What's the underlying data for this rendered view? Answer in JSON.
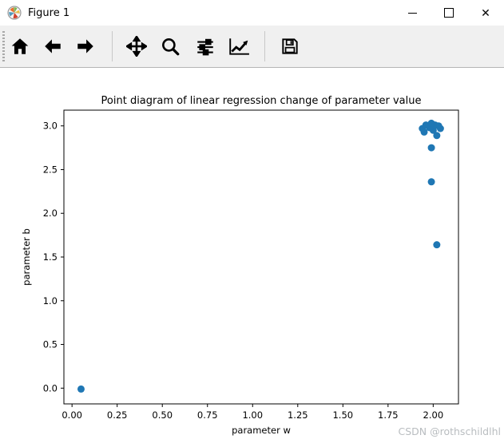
{
  "window": {
    "title": "Figure 1",
    "controls": {
      "minimize": "minimize",
      "maximize": "maximize",
      "close_glyph": "✕"
    }
  },
  "toolbar": {
    "buttons": [
      "home",
      "back",
      "forward",
      "pan",
      "zoom-to-rect",
      "configure-subplots",
      "edit-parameters",
      "save"
    ]
  },
  "watermark": "CSDN @rothschildlhl",
  "chart_data": {
    "type": "scatter",
    "title": "Point diagram of linear regression change of parameter value",
    "xlabel": "parameter w",
    "ylabel": "parameter b",
    "xlim": [
      -0.045,
      2.14
    ],
    "ylim": [
      -0.18,
      3.18
    ],
    "x_ticks": [
      0,
      0.25,
      0.5,
      0.75,
      1.0,
      1.25,
      1.5,
      1.75,
      2.0
    ],
    "x_tick_labels": [
      "0.00",
      "0.25",
      "0.50",
      "0.75",
      "1.00",
      "1.25",
      "1.50",
      "1.75",
      "2.00"
    ],
    "y_ticks": [
      0,
      0.5,
      1.0,
      1.5,
      2.0,
      2.5,
      3.0
    ],
    "y_tick_labels": [
      "0.0",
      "0.5",
      "1.0",
      "1.5",
      "2.0",
      "2.5",
      "3.0"
    ],
    "grid": false,
    "legend": null,
    "marker_color": "#1f77b4",
    "marker_radius_px": 4.5,
    "points": [
      [
        0.05,
        -0.01
      ],
      [
        2.02,
        1.64
      ],
      [
        1.99,
        2.36
      ],
      [
        1.99,
        2.75
      ],
      [
        2.02,
        2.89
      ],
      [
        1.95,
        2.93
      ],
      [
        2.0,
        2.95
      ],
      [
        1.94,
        2.97
      ],
      [
        1.98,
        2.98
      ],
      [
        2.03,
        3.0
      ],
      [
        1.96,
        3.01
      ],
      [
        2.01,
        3.01
      ],
      [
        1.99,
        3.03
      ],
      [
        2.04,
        2.97
      ]
    ]
  }
}
